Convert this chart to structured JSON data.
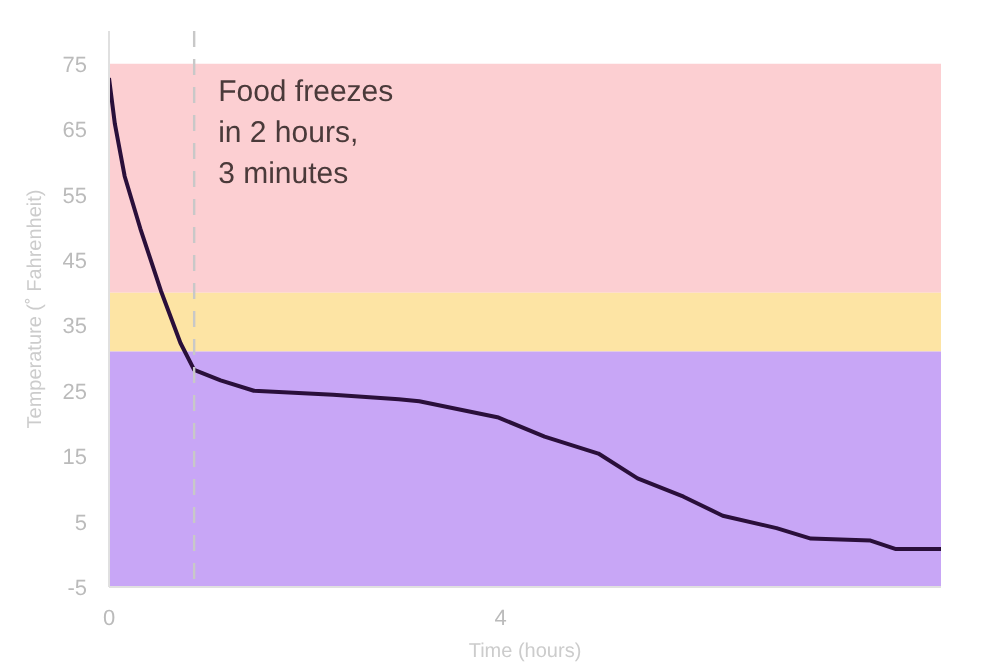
{
  "chart_data": {
    "type": "line",
    "xlabel": "Time (hours)",
    "ylabel": "Temperature (˚ Fahrenheit)",
    "x": [
      0,
      0.06,
      0.16,
      0.32,
      0.53,
      0.73,
      0.87,
      1.14,
      1.48,
      2.29,
      2.96,
      3.17,
      3.98,
      4.45,
      5.0,
      5.4,
      5.87,
      6.27,
      6.82,
      7.17,
      7.78,
      8.04,
      8.5
    ],
    "series": [
      {
        "color": "#2a0f3a",
        "values": [
          72.8,
          65.8,
          57.8,
          49.8,
          40.3,
          32.3,
          28.2,
          26.6,
          25.0,
          24.4,
          23.7,
          23.4,
          20.9,
          18.0,
          15.4,
          11.6,
          8.8,
          5.9,
          4.0,
          2.4,
          2.1,
          0.8,
          0.8
        ]
      }
    ],
    "xlim": [
      0,
      8.5
    ],
    "ylim": [
      -5,
      80
    ],
    "xticks": [
      0,
      4
    ],
    "yticks": [
      -5,
      5,
      15,
      25,
      35,
      45,
      55,
      65,
      75
    ],
    "bands": [
      {
        "axis": "y",
        "from": 40,
        "to": 75,
        "color": "#fccfd2"
      },
      {
        "axis": "y",
        "from": 31,
        "to": 40,
        "color": "#fde4a4"
      },
      {
        "axis": "y",
        "from": -5,
        "to": 31,
        "color": "#c8a6f6"
      }
    ],
    "ref_lines": [
      {
        "axis": "x",
        "value": 0.87,
        "label": "Food freezes\nin 2 hours,\n3 minutes",
        "color": "#c8c8c8",
        "line_style": "dashed"
      }
    ],
    "grid": false,
    "line_style": "solid",
    "marker": "none"
  }
}
